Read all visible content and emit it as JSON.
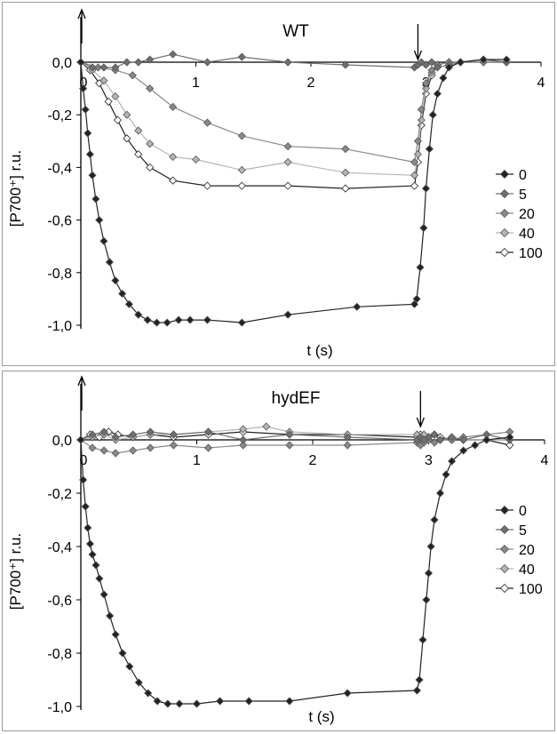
{
  "chart_data": [
    {
      "type": "line",
      "title": "WT",
      "xlabel": "t (s)",
      "ylabel": "[P700⁺] r.u.",
      "xlim": [
        0,
        4
      ],
      "ylim": [
        -1.0,
        0.0
      ],
      "xticks": [
        "0",
        "1",
        "2",
        "3",
        "4"
      ],
      "yticks": [
        "0,0",
        "-0,2",
        "-0,4",
        "-0,6",
        "-0,8",
        "-1,0"
      ],
      "annotations": [
        "↓ light on at t = 0",
        "↓ light off at t ≈ 2.95"
      ],
      "legend_position": "right",
      "series": [
        {
          "name": "0",
          "color": "#222222",
          "marker": "diamond-filled",
          "x": [
            0,
            0.02,
            0.04,
            0.06,
            0.08,
            0.1,
            0.13,
            0.16,
            0.2,
            0.25,
            0.3,
            0.36,
            0.42,
            0.5,
            0.58,
            0.66,
            0.75,
            0.85,
            0.95,
            1.1,
            1.4,
            1.8,
            2.4,
            2.9,
            2.92,
            2.95,
            2.98,
            3.0,
            3.03,
            3.06,
            3.1,
            3.15,
            3.2,
            3.3,
            3.5,
            3.7
          ],
          "y": [
            0,
            -0.1,
            -0.18,
            -0.27,
            -0.35,
            -0.43,
            -0.52,
            -0.6,
            -0.68,
            -0.76,
            -0.83,
            -0.88,
            -0.92,
            -0.96,
            -0.98,
            -0.99,
            -0.99,
            -0.98,
            -0.98,
            -0.98,
            -0.99,
            -0.96,
            -0.93,
            -0.92,
            -0.9,
            -0.78,
            -0.63,
            -0.48,
            -0.33,
            -0.2,
            -0.12,
            -0.06,
            -0.02,
            0.0,
            0.01,
            0.01
          ]
        },
        {
          "name": "5",
          "color": "#6f6f6f",
          "marker": "diamond-filled",
          "x": [
            0,
            0.1,
            0.2,
            0.3,
            0.4,
            0.5,
            0.6,
            0.8,
            1.1,
            1.4,
            1.8,
            2.3,
            2.9,
            2.93,
            2.96,
            3.0,
            3.05,
            3.1,
            3.2,
            3.3,
            3.5,
            3.7
          ],
          "y": [
            0,
            -0.02,
            -0.02,
            -0.02,
            0.0,
            0.0,
            0.01,
            0.03,
            0.0,
            0.02,
            0.0,
            -0.01,
            -0.02,
            -0.01,
            0.0,
            -0.01,
            0.0,
            -0.02,
            -0.01,
            0.0,
            0.01,
            0.0
          ]
        },
        {
          "name": "20",
          "color": "#8a8a8a",
          "marker": "diamond-filled",
          "x": [
            0,
            0.15,
            0.3,
            0.45,
            0.6,
            0.8,
            1.1,
            1.4,
            1.8,
            2.3,
            2.9,
            2.93,
            2.96,
            3.0,
            3.05,
            3.1,
            3.2,
            3.3,
            3.5,
            3.7
          ],
          "y": [
            0,
            -0.02,
            -0.03,
            -0.05,
            -0.1,
            -0.17,
            -0.23,
            -0.28,
            -0.32,
            -0.33,
            -0.38,
            -0.3,
            -0.18,
            -0.08,
            -0.03,
            -0.01,
            0.0,
            0.0,
            0.0,
            0.0
          ]
        },
        {
          "name": "40",
          "color": "#b5b5b5",
          "marker": "diamond-filled",
          "x": [
            0,
            0.1,
            0.2,
            0.3,
            0.4,
            0.5,
            0.6,
            0.8,
            1.0,
            1.4,
            1.8,
            2.3,
            2.9,
            2.93,
            2.96,
            3.0,
            3.05,
            3.1,
            3.2,
            3.3,
            3.5,
            3.7
          ],
          "y": [
            0,
            -0.03,
            -0.07,
            -0.13,
            -0.2,
            -0.26,
            -0.31,
            -0.36,
            -0.37,
            -0.41,
            -0.38,
            -0.42,
            -0.43,
            -0.35,
            -0.22,
            -0.1,
            -0.04,
            -0.01,
            0.0,
            0.0,
            0.0,
            0.0
          ]
        },
        {
          "name": "100",
          "color": "#ffffff",
          "marker": "diamond-open",
          "x": [
            0,
            0.08,
            0.16,
            0.24,
            0.32,
            0.4,
            0.5,
            0.6,
            0.8,
            1.1,
            1.4,
            1.8,
            2.3,
            2.9,
            2.93,
            2.96,
            3.0,
            3.05,
            3.1,
            3.2,
            3.3,
            3.5,
            3.7
          ],
          "y": [
            0,
            -0.03,
            -0.08,
            -0.15,
            -0.22,
            -0.29,
            -0.35,
            -0.4,
            -0.45,
            -0.47,
            -0.47,
            -0.47,
            -0.48,
            -0.47,
            -0.38,
            -0.24,
            -0.12,
            -0.05,
            -0.01,
            0.0,
            0.0,
            0.01,
            0.0
          ]
        }
      ]
    },
    {
      "type": "line",
      "title": "hydEF",
      "xlabel": "t (s)",
      "ylabel": "[P700⁺] r.u.",
      "xlim": [
        0,
        4
      ],
      "ylim": [
        -1.0,
        0.0
      ],
      "xticks": [
        "0",
        "1",
        "2",
        "3",
        "4"
      ],
      "yticks": [
        "0,0",
        "-0,2",
        "-0,4",
        "-0,6",
        "-0,8",
        "-1,0"
      ],
      "annotations": [
        "↑ light on at t = 0",
        "↓ light off at t ≈ 2.95"
      ],
      "legend_position": "right",
      "series": [
        {
          "name": "0",
          "color": "#222222",
          "marker": "diamond-filled",
          "x": [
            0,
            0.02,
            0.04,
            0.06,
            0.08,
            0.1,
            0.13,
            0.16,
            0.2,
            0.25,
            0.3,
            0.36,
            0.42,
            0.5,
            0.58,
            0.66,
            0.75,
            0.85,
            1.0,
            1.2,
            1.45,
            1.8,
            2.3,
            2.9,
            2.92,
            2.95,
            2.98,
            3.0,
            3.02,
            3.05,
            3.1,
            3.15,
            3.2,
            3.3,
            3.4,
            3.5,
            3.7
          ],
          "y": [
            0,
            -0.15,
            -0.25,
            -0.33,
            -0.39,
            -0.43,
            -0.47,
            -0.52,
            -0.58,
            -0.66,
            -0.73,
            -0.8,
            -0.85,
            -0.91,
            -0.95,
            -0.98,
            -0.99,
            -0.99,
            -0.99,
            -0.98,
            -0.98,
            -0.98,
            -0.95,
            -0.94,
            -0.9,
            -0.75,
            -0.6,
            -0.5,
            -0.4,
            -0.3,
            -0.2,
            -0.13,
            -0.08,
            -0.04,
            -0.02,
            0.0,
            0.01
          ]
        },
        {
          "name": "5",
          "color": "#6f6f6f",
          "marker": "diamond-filled",
          "x": [
            0,
            0.1,
            0.2,
            0.3,
            0.45,
            0.6,
            0.8,
            1.1,
            1.4,
            1.8,
            2.3,
            2.9,
            2.93,
            2.96,
            3.0,
            3.05,
            3.1,
            3.2,
            3.3,
            3.5,
            3.7
          ],
          "y": [
            0,
            0.02,
            0.03,
            0.01,
            0.02,
            0.03,
            0.02,
            0.03,
            0.0,
            0.02,
            0.01,
            0.0,
            0.01,
            0.0,
            0.01,
            0.02,
            0.0,
            0.01,
            0.0,
            0.02,
            0.0
          ]
        },
        {
          "name": "20",
          "color": "#8a8a8a",
          "marker": "diamond-filled",
          "x": [
            0,
            0.1,
            0.2,
            0.3,
            0.45,
            0.6,
            0.8,
            1.1,
            1.4,
            1.8,
            2.3,
            2.9,
            2.93,
            2.96,
            3.0,
            3.05,
            3.1,
            3.2,
            3.3,
            3.5,
            3.7
          ],
          "y": [
            0,
            -0.03,
            -0.04,
            -0.05,
            -0.04,
            -0.03,
            -0.02,
            -0.03,
            -0.02,
            -0.02,
            -0.02,
            -0.01,
            -0.02,
            -0.01,
            0.0,
            -0.01,
            0.0,
            0.0,
            0.01,
            0.02,
            0.03
          ]
        },
        {
          "name": "40",
          "color": "#b5b5b5",
          "marker": "diamond-filled",
          "x": [
            0,
            0.1,
            0.2,
            0.3,
            0.45,
            0.6,
            0.8,
            1.1,
            1.4,
            1.6,
            1.8,
            2.3,
            2.9,
            2.93,
            2.96,
            3.0,
            3.05,
            3.1,
            3.2,
            3.3,
            3.5,
            3.7
          ],
          "y": [
            0,
            0.01,
            0.02,
            0.0,
            0.01,
            0.02,
            0.02,
            0.03,
            0.04,
            0.05,
            0.03,
            0.02,
            0.02,
            0.01,
            0.02,
            0.01,
            0.02,
            0.0,
            0.01,
            0.0,
            0.0,
            0.0
          ]
        },
        {
          "name": "100",
          "color": "#ffffff",
          "marker": "diamond-open",
          "x": [
            0,
            0.08,
            0.16,
            0.24,
            0.32,
            0.45,
            0.6,
            0.8,
            1.1,
            1.4,
            1.8,
            2.3,
            2.9,
            2.93,
            2.96,
            3.0,
            3.05,
            3.1,
            3.2,
            3.3,
            3.5,
            3.7
          ],
          "y": [
            0,
            0.02,
            0.01,
            0.03,
            0.02,
            0.01,
            0.02,
            0.01,
            0.02,
            0.03,
            0.02,
            0.02,
            0.01,
            0.02,
            0.0,
            0.01,
            0.02,
            0.01,
            0.0,
            0.0,
            0.0,
            -0.02
          ]
        }
      ]
    }
  ]
}
